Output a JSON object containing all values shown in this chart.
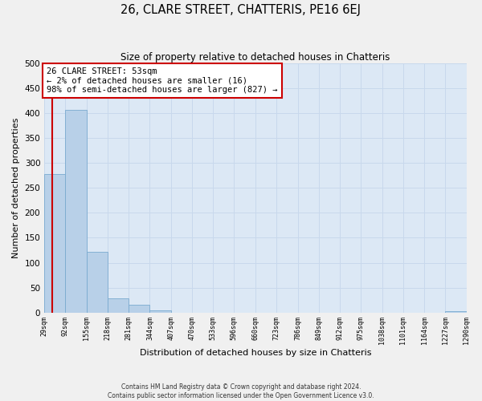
{
  "title": "26, CLARE STREET, CHATTERIS, PE16 6EJ",
  "subtitle": "Size of property relative to detached houses in Chatteris",
  "xlabel": "Distribution of detached houses by size in Chatteris",
  "ylabel": "Number of detached properties",
  "bar_left_edges": [
    29,
    92,
    155,
    218,
    281,
    344,
    407,
    470,
    533,
    596,
    660,
    723,
    786,
    849,
    912,
    975,
    1038,
    1101,
    1164,
    1227
  ],
  "bar_heights": [
    278,
    407,
    122,
    29,
    15,
    4,
    0,
    0,
    0,
    0,
    0,
    0,
    0,
    0,
    0,
    0,
    0,
    0,
    0,
    3
  ],
  "bin_width": 63,
  "bar_color": "#b8d0e8",
  "bar_edge_color": "#7aaacf",
  "ylim": [
    0,
    500
  ],
  "yticks": [
    0,
    50,
    100,
    150,
    200,
    250,
    300,
    350,
    400,
    450,
    500
  ],
  "xtick_labels": [
    "29sqm",
    "92sqm",
    "155sqm",
    "218sqm",
    "281sqm",
    "344sqm",
    "407sqm",
    "470sqm",
    "533sqm",
    "596sqm",
    "660sqm",
    "723sqm",
    "786sqm",
    "849sqm",
    "912sqm",
    "975sqm",
    "1038sqm",
    "1101sqm",
    "1164sqm",
    "1227sqm",
    "1290sqm"
  ],
  "property_size": 53,
  "property_label": "26 CLARE STREET: 53sqm",
  "annotation_line1": "← 2% of detached houses are smaller (16)",
  "annotation_line2": "98% of semi-detached houses are larger (827) →",
  "red_line_x": 53,
  "annotation_box_facecolor": "#ffffff",
  "annotation_box_edgecolor": "#cc0000",
  "grid_color": "#c8d8ec",
  "plot_bg_color": "#dce8f5",
  "fig_bg_color": "#f0f0f0",
  "footer_line1": "Contains HM Land Registry data © Crown copyright and database right 2024.",
  "footer_line2": "Contains public sector information licensed under the Open Government Licence v3.0."
}
